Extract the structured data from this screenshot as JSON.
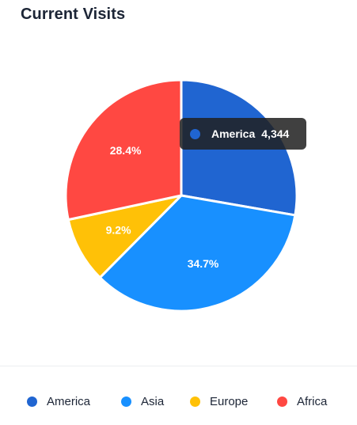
{
  "card": {
    "title": "Current Visits"
  },
  "chart_data": {
    "type": "pie",
    "title": "Current Visits",
    "series": [
      {
        "name": "America",
        "value": 4344,
        "percent": 27.7,
        "color": "#2065d1"
      },
      {
        "name": "Asia",
        "value": 5435,
        "percent": 34.7,
        "label": "34.7%",
        "color": "#1890ff"
      },
      {
        "name": "Europe",
        "value": 1443,
        "percent": 9.2,
        "label": "9.2%",
        "color": "#ffc107"
      },
      {
        "name": "Africa",
        "value": 4443,
        "percent": 28.4,
        "label": "28.4%",
        "color": "#ff4842"
      }
    ],
    "legend_position": "bottom"
  },
  "tooltip": {
    "name": "America",
    "value": "4,344",
    "color": "#2065d1"
  }
}
